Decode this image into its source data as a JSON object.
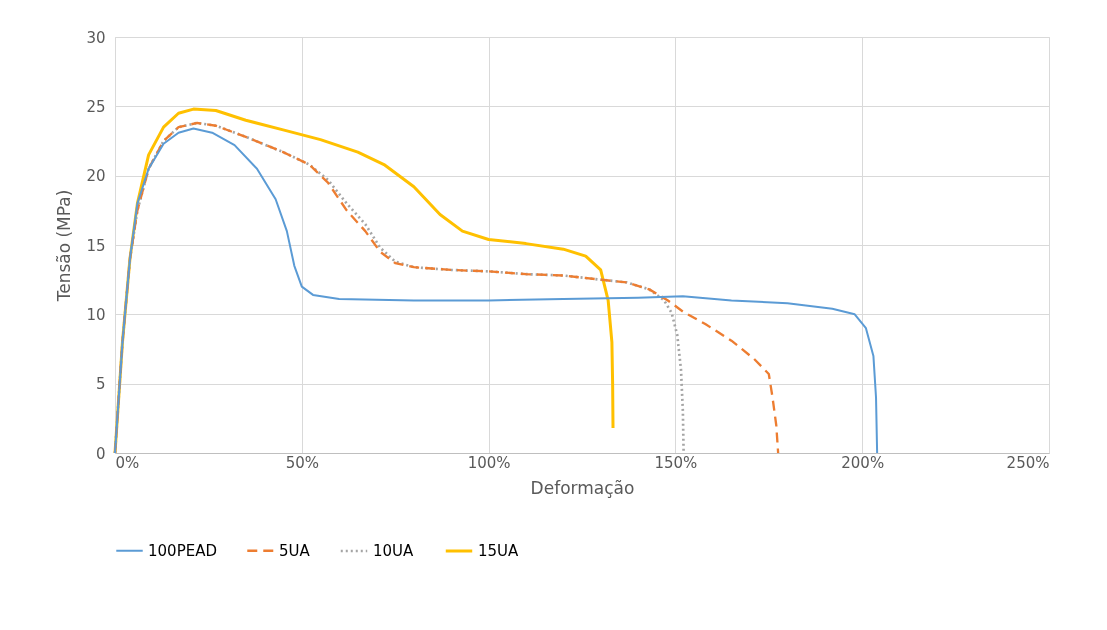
{
  "chart_data": {
    "type": "line",
    "xlabel": "Deformação",
    "ylabel": "Tensão (MPa)",
    "xlim": [
      0,
      250
    ],
    "xticks": [
      {
        "value": 0,
        "label": "0%"
      },
      {
        "value": 50,
        "label": "50%"
      },
      {
        "value": 100,
        "label": "100%"
      },
      {
        "value": 150,
        "label": "150%"
      },
      {
        "value": 200,
        "label": "200%"
      },
      {
        "value": 250,
        "label": "250%"
      }
    ],
    "ylim": [
      0,
      30
    ],
    "yticks": [
      0,
      5,
      10,
      15,
      20,
      25,
      30
    ],
    "grid": true,
    "legend": "bottom",
    "marker": "none",
    "series": [
      {
        "name": "100PEAD",
        "color": "#5b9bd5",
        "line_style": "solid",
        "x": [
          0,
          2,
          4,
          6,
          9,
          13,
          17,
          21,
          26,
          32,
          38,
          43,
          46,
          48,
          50,
          53,
          60,
          80,
          100,
          120,
          140,
          152,
          165,
          180,
          192,
          198,
          201,
          203,
          203.7,
          204
        ],
        "values": [
          0,
          8,
          14,
          18,
          20.5,
          22.3,
          23.1,
          23.4,
          23.1,
          22.2,
          20.5,
          18.3,
          16,
          13.5,
          12,
          11.4,
          11.1,
          11.0,
          11.0,
          11.1,
          11.2,
          11.3,
          11.0,
          10.8,
          10.4,
          10.0,
          9,
          7,
          4,
          0
        ]
      },
      {
        "name": "5UA",
        "color": "#ed7d31",
        "line_style": "dashed",
        "x": [
          0,
          2,
          4,
          6,
          9,
          13,
          17,
          22,
          27,
          35,
          45,
          52,
          57,
          62,
          67,
          71,
          75,
          80,
          90,
          100,
          110,
          120,
          130,
          137,
          143,
          148,
          152,
          158,
          165,
          171,
          175,
          176,
          177,
          177.5
        ],
        "values": [
          0,
          8,
          14,
          17.5,
          20.5,
          22.5,
          23.5,
          23.8,
          23.6,
          22.8,
          21.7,
          20.8,
          19.5,
          17.5,
          16,
          14.5,
          13.7,
          13.4,
          13.2,
          13.1,
          12.9,
          12.8,
          12.5,
          12.3,
          11.8,
          11.0,
          10.2,
          9.3,
          8.1,
          6.8,
          5.7,
          4,
          2,
          0
        ]
      },
      {
        "name": "10UA",
        "color": "#a5a5a5",
        "line_style": "dotted",
        "x": [
          0,
          2,
          4,
          6,
          9,
          13,
          17,
          22,
          27,
          35,
          45,
          52,
          57,
          62,
          67,
          71,
          75,
          80,
          90,
          100,
          110,
          120,
          130,
          137,
          143,
          147,
          149,
          150.5,
          151.5,
          152,
          152.2
        ],
        "values": [
          0,
          8,
          14,
          17.5,
          20.5,
          22.5,
          23.5,
          23.8,
          23.6,
          22.8,
          21.7,
          20.8,
          19.7,
          18.0,
          16.5,
          14.8,
          13.8,
          13.4,
          13.2,
          13.1,
          12.9,
          12.8,
          12.5,
          12.3,
          11.8,
          11.0,
          10.1,
          8.5,
          6,
          3,
          0
        ]
      },
      {
        "name": "15UA",
        "color": "#ffc000",
        "line_style": "solid",
        "x": [
          0,
          2,
          4,
          6,
          9,
          13,
          17,
          21,
          27,
          35,
          45,
          55,
          65,
          72,
          80,
          87,
          93,
          100,
          110,
          120,
          126,
          130,
          132,
          133,
          133.2,
          133.3
        ],
        "values": [
          0,
          8,
          14,
          18,
          21.5,
          23.5,
          24.5,
          24.8,
          24.7,
          24,
          23.3,
          22.6,
          21.7,
          20.8,
          19.2,
          17.2,
          16,
          15.4,
          15.1,
          14.7,
          14.2,
          13.2,
          11,
          8,
          5,
          1.8
        ]
      }
    ]
  }
}
